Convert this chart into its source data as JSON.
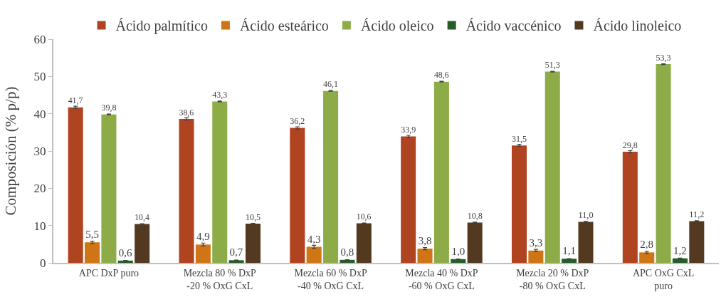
{
  "chart_data": {
    "type": "bar",
    "ylabel": "Composición (% p/p)",
    "categories": [
      "APC DxP puro",
      "Mezcla 80 % DxP\n-20 % OxG CxL",
      "Mezcla 60 % DxP\n-40 % OxG CxL",
      "Mezcla 40 % DxP\n-60 % OxG CxL",
      "Mezcla 20 % DxP\n-80 % OxG CxL",
      "APC OxG CxL\npuro"
    ],
    "series": [
      {
        "name": "Ácido palmítico",
        "color": "#b04420",
        "values": [
          41.7,
          38.6,
          36.2,
          33.9,
          31.5,
          29.8
        ],
        "errors": [
          0.3,
          0.3,
          0.3,
          0.3,
          0.3,
          0.3
        ],
        "value_labels": [
          "41,7",
          "38,6",
          "36,2",
          "33,9",
          "31,5",
          "29,8"
        ]
      },
      {
        "name": "Ácido esteárico",
        "color": "#d07515",
        "values": [
          5.5,
          4.9,
          4.3,
          3.8,
          3.3,
          2.8
        ],
        "errors": [
          0.3,
          0.4,
          0.4,
          0.3,
          0.3,
          0.3
        ],
        "value_labels": [
          "5,5",
          "4,9",
          "4,3",
          "3,8",
          "3,3",
          "2,8"
        ]
      },
      {
        "name": "Ácido oleico",
        "color": "#8dac48",
        "values": [
          39.8,
          43.3,
          46.1,
          48.6,
          51.3,
          53.3
        ],
        "errors": [
          0.1,
          0.1,
          0.1,
          0.1,
          0.1,
          0.1
        ],
        "value_labels": [
          "39,8",
          "43,3",
          "46,1",
          "48,6",
          "51,3",
          "53,3"
        ]
      },
      {
        "name": "Ácido vaccénico",
        "color": "#255c28",
        "values": [
          0.6,
          0.7,
          0.8,
          1.0,
          1.1,
          1.2
        ],
        "errors": [
          0.05,
          0.05,
          0.05,
          0.05,
          0.05,
          0.05
        ],
        "value_labels": [
          "0,6",
          "0,7",
          "0,8",
          "1,0",
          "1,1",
          "1,2"
        ]
      },
      {
        "name": "Ácido linoleico",
        "color": "#523920",
        "values": [
          10.4,
          10.5,
          10.6,
          10.8,
          11.0,
          11.2
        ],
        "errors": [
          0.1,
          0.1,
          0.1,
          0.1,
          0.1,
          0.1
        ],
        "value_labels": [
          "10,4",
          "10,5",
          "10,6",
          "10,8",
          "11,0",
          "11,2"
        ]
      }
    ],
    "ylim": [
      0,
      60
    ],
    "yticks": [
      0,
      10,
      20,
      30,
      40,
      50,
      60
    ],
    "grid": false,
    "legend": "top"
  }
}
